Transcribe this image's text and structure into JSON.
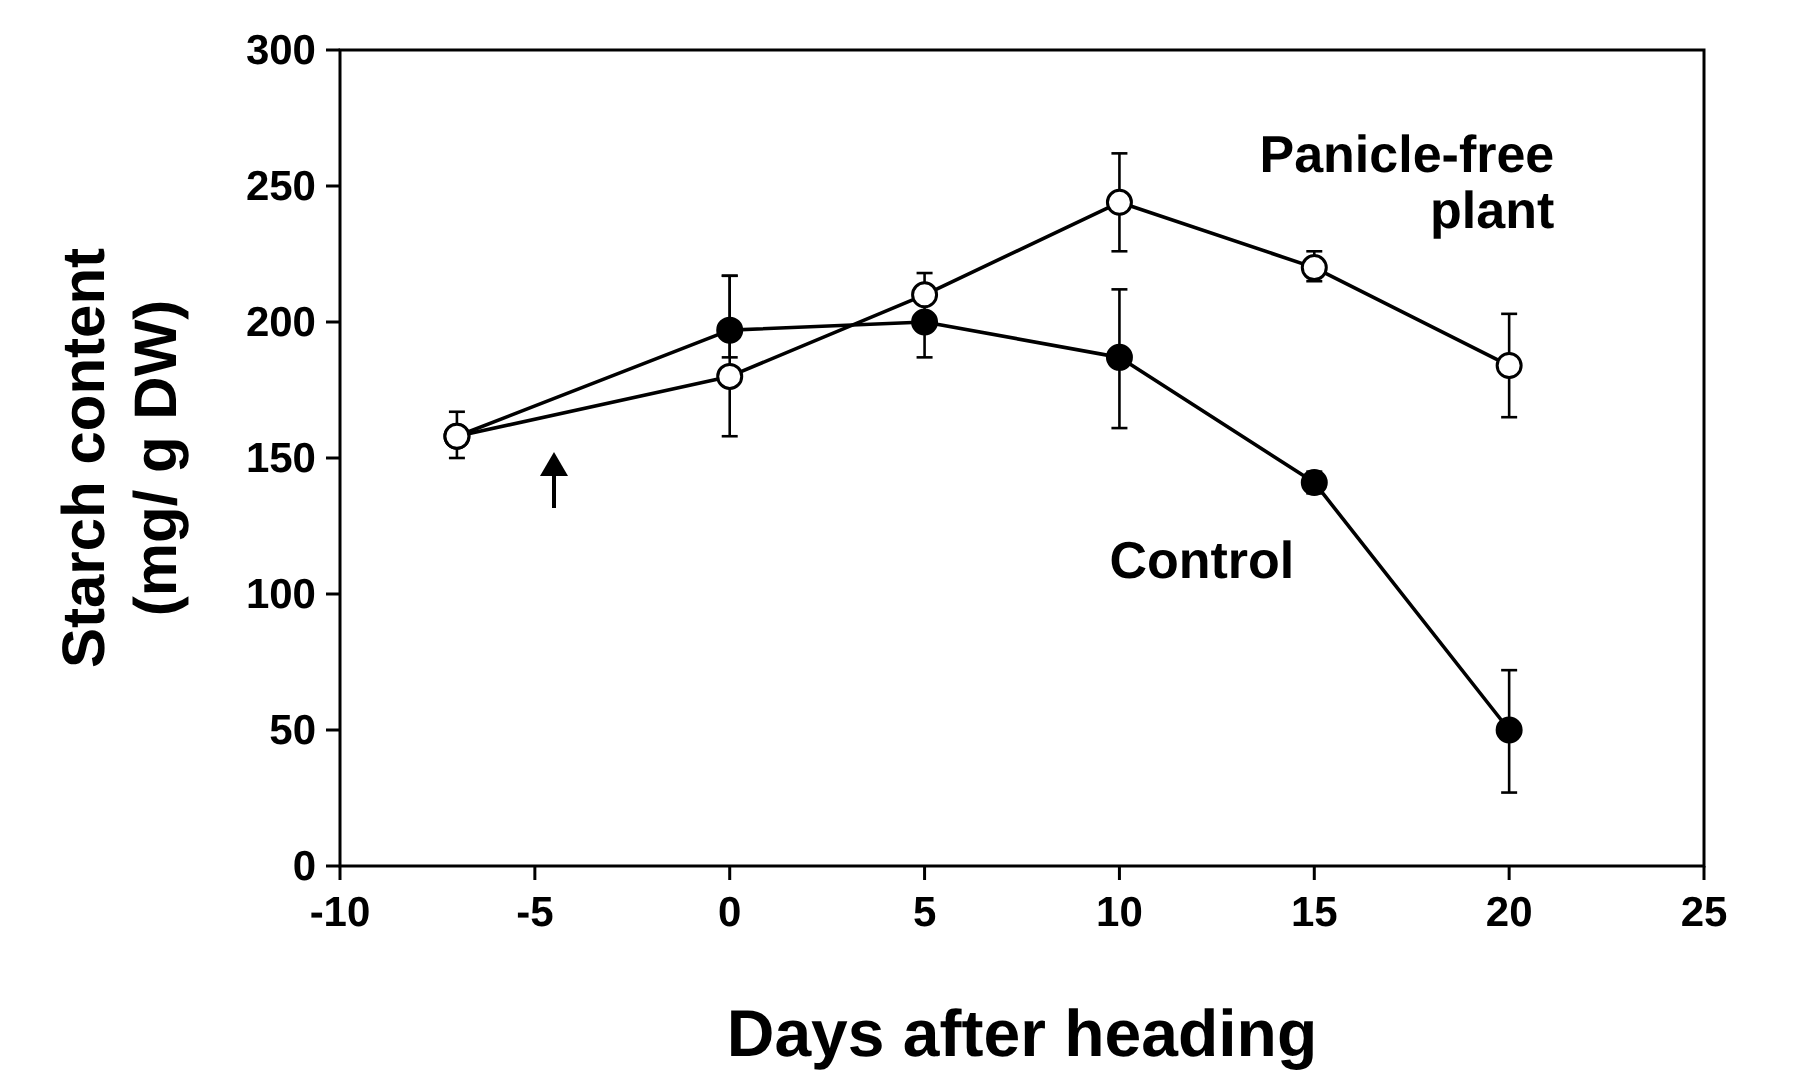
{
  "chart_data": {
    "type": "line",
    "xlabel": "Days after heading",
    "ylabel": "Starch content\n(mg/ g DW)",
    "xlim": [
      -10,
      25
    ],
    "xticks": [
      -10,
      -5,
      0,
      5,
      10,
      15,
      20,
      25
    ],
    "ylim": [
      0,
      300
    ],
    "yticks": [
      0,
      50,
      100,
      150,
      200,
      250,
      300
    ],
    "x": [
      -7,
      0,
      5,
      10,
      15,
      20
    ],
    "marker": "circle",
    "grid": false,
    "series": [
      {
        "name": "Panicle-free plant",
        "color": "#ffffff",
        "values": [
          158,
          180,
          210,
          244,
          220,
          184
        ],
        "errors": [
          [
            150,
            167
          ],
          [
            158,
            217
          ],
          [
            210,
            218
          ],
          [
            226,
            262
          ],
          [
            215,
            226
          ],
          [
            165,
            203
          ]
        ]
      },
      {
        "name": "Control",
        "color": "#000000",
        "values": [
          158,
          197,
          200,
          187,
          141,
          50
        ],
        "errors": [
          null,
          [
            187,
            217
          ],
          [
            187,
            212
          ],
          [
            161,
            212
          ],
          [
            137,
            145
          ],
          [
            27,
            72
          ]
        ]
      }
    ]
  }
}
